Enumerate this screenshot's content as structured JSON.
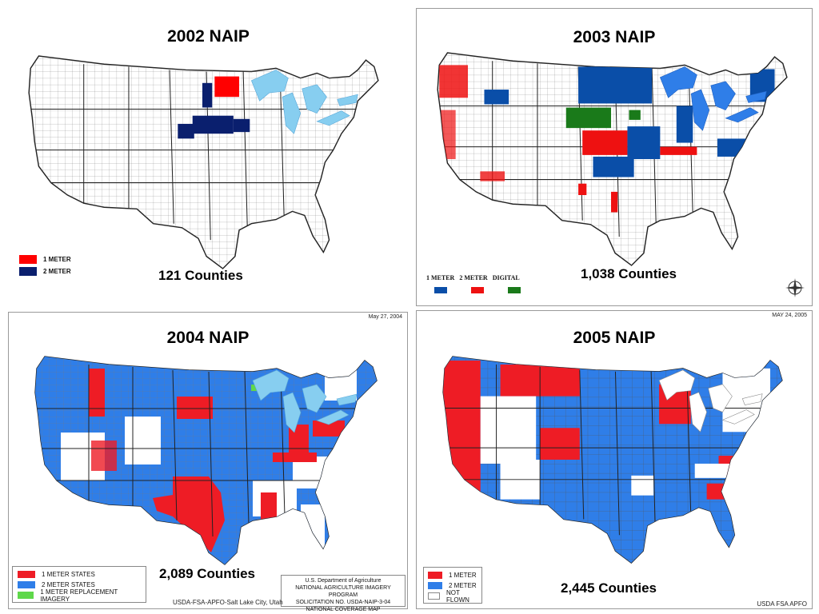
{
  "maps": {
    "m2002": {
      "title": "2002 NAIP",
      "counties": "121 Counties",
      "legend": [
        {
          "label": "1 METER",
          "color": "#ff0000"
        },
        {
          "label": "2 METER",
          "color": "#0a1f6e"
        }
      ]
    },
    "m2003": {
      "title": "2003 NAIP",
      "counties": "1,038 Counties",
      "legend": [
        {
          "label": "1 METER",
          "color": "#0a4ea8"
        },
        {
          "label": "2 METER",
          "color": "#ee1111"
        },
        {
          "label": "DIGITAL",
          "color": "#1a7a1a"
        }
      ]
    },
    "m2004": {
      "title": "2004 NAIP",
      "counties": "2,089 Counties",
      "date": "May 27, 2004",
      "legend": [
        {
          "label": "1 METER STATES",
          "color": "#ee1c25"
        },
        {
          "label": "2 METER STATES",
          "color": "#2f7ee8"
        },
        {
          "label": "1 METER REPLACEMENT IMAGERY",
          "color": "#5fd84a"
        }
      ],
      "info_lines": [
        "U.S. Department of Agriculture",
        "NATIONAL AGRICULTURE IMAGERY PROGRAM",
        "SOLICITATION NO. USDA-NAIP-3-04",
        "NATIONAL COVERAGE MAP"
      ],
      "footer": "USDA-FSA-APFO-Salt Lake City, Utah"
    },
    "m2005": {
      "title": "2005 NAIP",
      "counties": "2,445 Counties",
      "date": "MAY 24, 2005",
      "legend": [
        {
          "label": "1 METER",
          "color": "#ee1c25"
        },
        {
          "label": "2 METER",
          "color": "#2f7ee8"
        },
        {
          "label": "NOT FLOWN",
          "color": "#ffffff"
        }
      ],
      "footer": "USDA FSA APFO"
    }
  },
  "colors": {
    "lakes": "#87cef0",
    "outline": "#222222",
    "land": "#ffffff"
  }
}
